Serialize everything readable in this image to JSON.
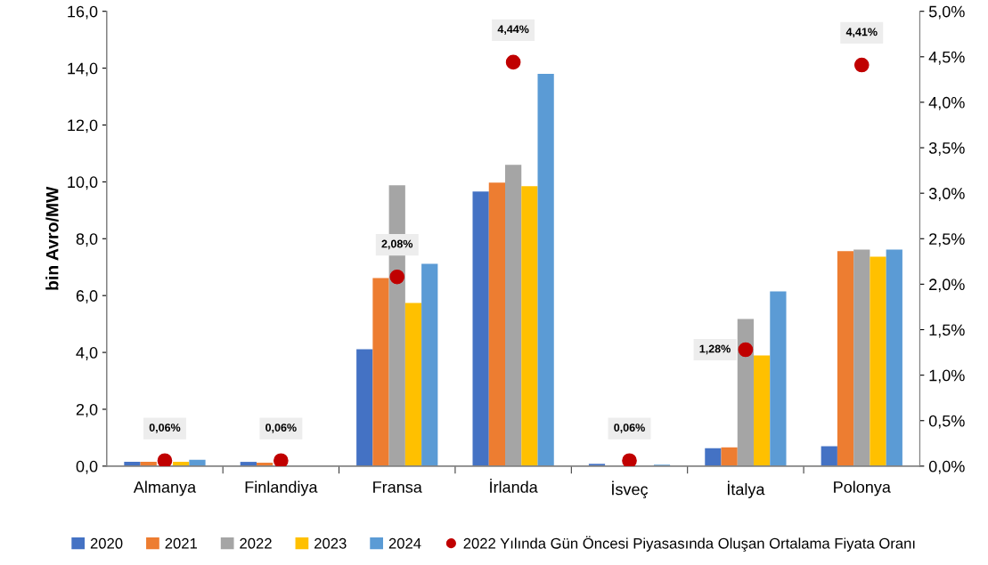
{
  "chart_data": {
    "type": "bar",
    "ylabel": "bin Avro/MW",
    "categories": [
      "Almanya",
      "Finlandiya",
      "Fransa",
      "İrlanda",
      "İsveç",
      "İtalya",
      "Polonya"
    ],
    "series": [
      {
        "name": "2020",
        "color": "#4472c4",
        "values": [
          0.15,
          0.15,
          4.11,
          9.66,
          0.08,
          0.63,
          0.7
        ]
      },
      {
        "name": "2021",
        "color": "#ed7d31",
        "values": [
          0.15,
          0.12,
          6.62,
          9.97,
          null,
          0.66,
          7.56
        ]
      },
      {
        "name": "2022",
        "color": "#a5a5a5",
        "values": [
          null,
          null,
          9.88,
          10.6,
          null,
          5.18,
          7.62
        ]
      },
      {
        "name": "2023",
        "color": "#ffc000",
        "values": [
          0.15,
          0.0,
          5.74,
          9.85,
          null,
          3.89,
          7.37
        ]
      },
      {
        "name": "2024",
        "color": "#5b9bd5",
        "values": [
          0.22,
          0.0,
          7.12,
          13.8,
          0.05,
          6.15,
          7.62
        ]
      },
      {
        "name": "2022 Yılında Gün Öncesi Piyasasında Oluşan Ortalama Fiyata Oranı",
        "type": "scatter",
        "axis": "y2",
        "color": "#c00000",
        "marker": "circle",
        "values": [
          0.06,
          0.06,
          2.08,
          4.44,
          0.06,
          1.28,
          4.41
        ],
        "value_labels": [
          "0,06%",
          "0,06%",
          "2,08%",
          "4,44%",
          "0,06%",
          "1,28%",
          "4,41%"
        ]
      }
    ],
    "ylim": [
      0,
      16
    ],
    "yticks": [
      {
        "value": 0,
        "label": "0,0"
      },
      {
        "value": 2,
        "label": "2,0"
      },
      {
        "value": 4,
        "label": "4,0"
      },
      {
        "value": 6,
        "label": "6,0"
      },
      {
        "value": 8,
        "label": "8,0"
      },
      {
        "value": 10,
        "label": "10,0"
      },
      {
        "value": 12,
        "label": "12,0"
      },
      {
        "value": 14,
        "label": "14,0"
      },
      {
        "value": 16,
        "label": "16,0"
      }
    ],
    "y2lim": [
      0,
      5
    ],
    "y2ticks": [
      {
        "value": 0,
        "label": "0,0%"
      },
      {
        "value": 0.5,
        "label": "0,5%"
      },
      {
        "value": 1,
        "label": "1,0%"
      },
      {
        "value": 1.5,
        "label": "1,5%"
      },
      {
        "value": 2,
        "label": "2,0%"
      },
      {
        "value": 2.5,
        "label": "2,5%"
      },
      {
        "value": 3,
        "label": "3,0%"
      },
      {
        "value": 3.5,
        "label": "3,5%"
      },
      {
        "value": 4,
        "label": "4,0%"
      },
      {
        "value": 4.5,
        "label": "4,5%"
      },
      {
        "value": 5,
        "label": "5,0%"
      }
    ],
    "grid": false,
    "legend": "bottom"
  }
}
